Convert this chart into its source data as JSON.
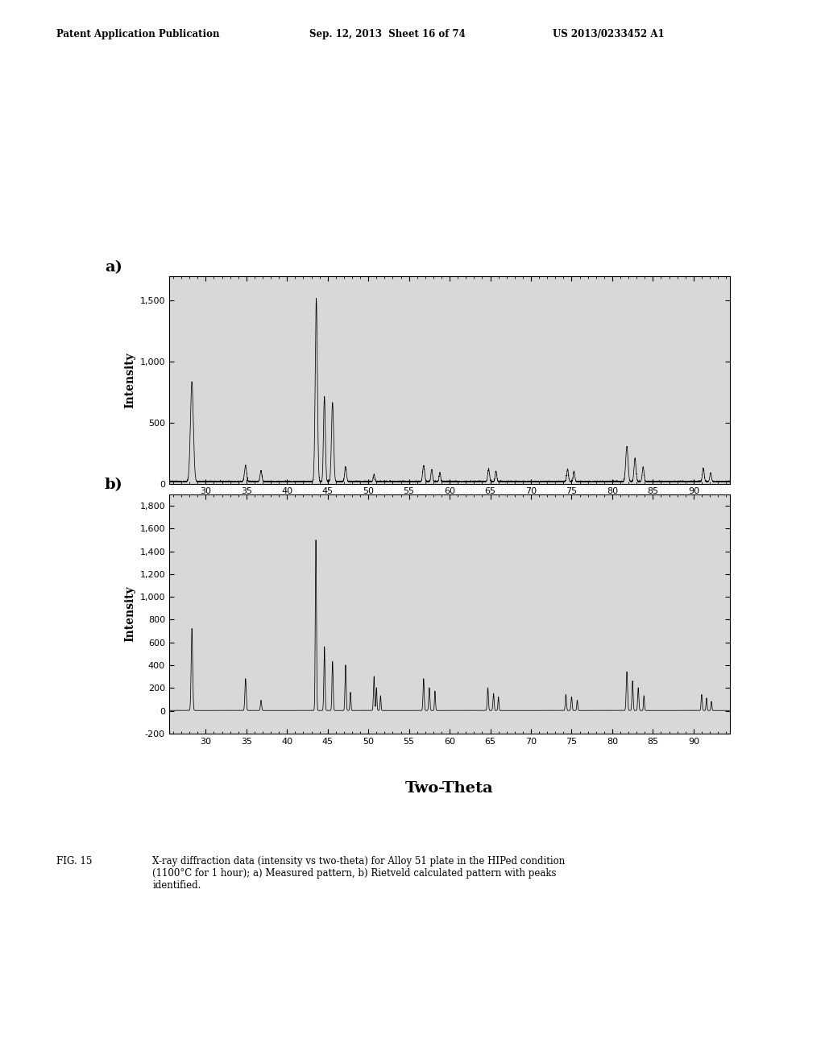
{
  "header_left": "Patent Application Publication",
  "header_center": "Sep. 12, 2013  Sheet 16 of 74",
  "header_right": "US 2013/0233452 A1",
  "xlabel": "Two-Theta",
  "ylabel": "Intensity",
  "panel_a_label": "a)",
  "panel_b_label": "b)",
  "panel_a_ylim": [
    0,
    1700
  ],
  "panel_a_yticks": [
    0,
    500,
    1000,
    1500
  ],
  "panel_b_ylim": [
    -200,
    1900
  ],
  "panel_b_yticks": [
    -200,
    0,
    200,
    400,
    600,
    800,
    1000,
    1200,
    1400,
    1600,
    1800
  ],
  "xlim": [
    25.5,
    94.5
  ],
  "xticks": [
    30,
    35,
    40,
    45,
    50,
    55,
    60,
    65,
    70,
    75,
    80,
    85,
    90
  ],
  "fig_caption_label": "FIG. 15",
  "fig_caption_text": "X-ray diffraction data (intensity vs two-theta) for Alloy 51 plate in the HIPed condition\n(1100°C for 1 hour); a) Measured pattern, b) Rietveld calculated pattern with peaks\nidentified.",
  "background_color": "#ffffff",
  "line_color": "#000000",
  "panel_bg": "#d8d8d8"
}
